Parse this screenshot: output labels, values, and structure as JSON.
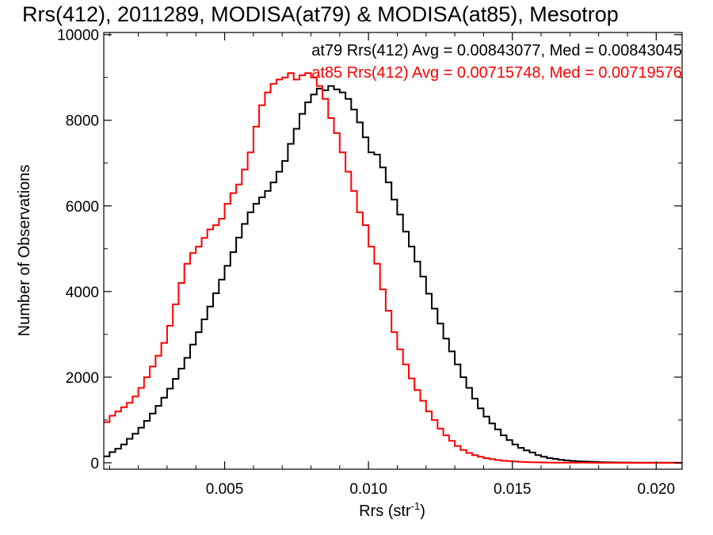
{
  "chart_data": {
    "type": "line",
    "title": "Rrs(412), 2011289, MODISA(at79) & MODISA(at85), Mesotrop",
    "xlabel": "Rrs (str",
    "xlabel_sup": "-1",
    "xlabel_close": ")",
    "ylabel": "Number of Observations",
    "xlim": [
      0.0008,
      0.0209
    ],
    "ylim": [
      -150,
      10050
    ],
    "x_ticks": [
      0.005,
      0.01,
      0.015,
      0.02
    ],
    "x_tick_labels": [
      "0.005",
      "0.010",
      "0.015",
      "0.020"
    ],
    "y_ticks": [
      0,
      2000,
      4000,
      6000,
      8000,
      10000
    ],
    "y_tick_labels": [
      "0",
      "2000",
      "4000",
      "6000",
      "8000",
      "10000"
    ],
    "grid": false,
    "legend": [
      {
        "text": "at79 Rrs(412) Avg = 0.00843077, Med = 0.00843045",
        "color": "#000000"
      },
      {
        "text": "at85 Rrs(412) Avg = 0.00715748, Med = 0.00719576",
        "color": "#ff0000"
      }
    ],
    "series": [
      {
        "color": "#000000",
        "step": true,
        "x": [
          0.0008,
          0.001,
          0.0012,
          0.0014,
          0.0016,
          0.0018,
          0.002,
          0.0022,
          0.0024,
          0.0026,
          0.0028,
          0.003,
          0.0032,
          0.0034,
          0.0036,
          0.0038,
          0.004,
          0.0042,
          0.0044,
          0.0046,
          0.0048,
          0.005,
          0.0052,
          0.0054,
          0.0056,
          0.0058,
          0.006,
          0.0062,
          0.0064,
          0.0066,
          0.0068,
          0.007,
          0.0072,
          0.0074,
          0.0076,
          0.0078,
          0.008,
          0.0082,
          0.0084,
          0.0086,
          0.0088,
          0.009,
          0.0092,
          0.0094,
          0.0096,
          0.0098,
          0.01,
          0.0102,
          0.0104,
          0.0106,
          0.0108,
          0.011,
          0.0112,
          0.0114,
          0.0116,
          0.0118,
          0.012,
          0.0122,
          0.0124,
          0.0126,
          0.0128,
          0.013,
          0.0132,
          0.0134,
          0.0136,
          0.0138,
          0.014,
          0.0142,
          0.0144,
          0.0146,
          0.0148,
          0.015,
          0.0152,
          0.0154,
          0.0156,
          0.0158,
          0.016,
          0.0162,
          0.0164,
          0.0166,
          0.0168,
          0.017,
          0.0172,
          0.0174,
          0.0176,
          0.0178,
          0.018,
          0.0182,
          0.0184,
          0.0186,
          0.0188,
          0.019,
          0.0192,
          0.0194,
          0.0196,
          0.0198,
          0.02,
          0.0202,
          0.0204,
          0.0206,
          0.0208
        ],
        "y": [
          150,
          250,
          330,
          430,
          560,
          680,
          820,
          980,
          1150,
          1330,
          1520,
          1730,
          1960,
          2200,
          2450,
          2760,
          3050,
          3350,
          3650,
          3960,
          4280,
          4600,
          4920,
          5260,
          5580,
          5850,
          6050,
          6200,
          6350,
          6550,
          6800,
          7050,
          7450,
          7800,
          8150,
          8420,
          8600,
          8740,
          8700,
          8800,
          8720,
          8650,
          8500,
          8250,
          7950,
          7600,
          7250,
          7200,
          6900,
          6550,
          6150,
          5800,
          5400,
          5050,
          4700,
          4350,
          3950,
          3600,
          3250,
          2900,
          2600,
          2300,
          2000,
          1750,
          1500,
          1270,
          1080,
          920,
          780,
          640,
          530,
          430,
          350,
          290,
          240,
          180,
          140,
          110,
          90,
          70,
          55,
          45,
          35,
          30,
          25,
          20,
          15,
          12,
          10,
          8,
          6,
          5,
          4,
          3,
          2,
          2,
          1,
          1,
          1,
          0,
          0
        ]
      },
      {
        "color": "#ff0000",
        "step": true,
        "x": [
          0.0008,
          0.001,
          0.0012,
          0.0014,
          0.0016,
          0.0018,
          0.002,
          0.0022,
          0.0024,
          0.0026,
          0.0028,
          0.003,
          0.0032,
          0.0034,
          0.0036,
          0.0038,
          0.004,
          0.0042,
          0.0044,
          0.0046,
          0.0048,
          0.005,
          0.0052,
          0.0054,
          0.0056,
          0.0058,
          0.006,
          0.0062,
          0.0064,
          0.0066,
          0.0068,
          0.007,
          0.0072,
          0.0074,
          0.0076,
          0.0078,
          0.008,
          0.0082,
          0.0084,
          0.0086,
          0.0088,
          0.009,
          0.0092,
          0.0094,
          0.0096,
          0.0098,
          0.01,
          0.0102,
          0.0104,
          0.0106,
          0.0108,
          0.011,
          0.0112,
          0.0114,
          0.0116,
          0.0118,
          0.012,
          0.0122,
          0.0124,
          0.0126,
          0.0128,
          0.013,
          0.0132,
          0.0134,
          0.0136,
          0.0138,
          0.014,
          0.0142,
          0.0144,
          0.0146,
          0.0148,
          0.015,
          0.0152,
          0.0154,
          0.0156,
          0.0158,
          0.016,
          0.0162,
          0.0164,
          0.0166,
          0.0168,
          0.017,
          0.0172,
          0.0174,
          0.0176,
          0.0178,
          0.018,
          0.0182,
          0.0184,
          0.0186,
          0.0188,
          0.019,
          0.0192,
          0.0194,
          0.0196,
          0.0198,
          0.02,
          0.0202,
          0.0204,
          0.0206,
          0.0208
        ],
        "y": [
          950,
          1100,
          1200,
          1300,
          1400,
          1550,
          1750,
          2000,
          2250,
          2500,
          2800,
          3200,
          3700,
          4200,
          4650,
          4900,
          5050,
          5250,
          5450,
          5550,
          5700,
          6050,
          6300,
          6500,
          6850,
          7250,
          7850,
          8350,
          8650,
          8850,
          8950,
          9000,
          9100,
          8950,
          9050,
          9100,
          9000,
          8800,
          8500,
          8050,
          7700,
          7250,
          6800,
          6350,
          5850,
          5550,
          5050,
          4650,
          4050,
          3550,
          3050,
          2650,
          2300,
          1970,
          1700,
          1450,
          1200,
          1000,
          800,
          640,
          510,
          390,
          300,
          230,
          180,
          140,
          110,
          85,
          65,
          50,
          40,
          30,
          22,
          16,
          12,
          9,
          7,
          5,
          4,
          3,
          2,
          2,
          1,
          1,
          1,
          0,
          0,
          0,
          0,
          0,
          0,
          0,
          0,
          0,
          0,
          0,
          0,
          0,
          0,
          0,
          0
        ]
      }
    ]
  }
}
